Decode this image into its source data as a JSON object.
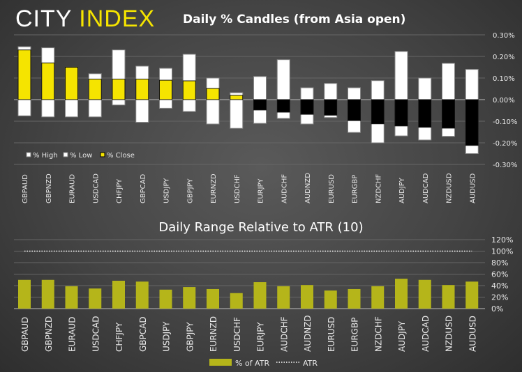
{
  "logo": {
    "part1": "CITY",
    "part2": "INDEX"
  },
  "chart_data": [
    {
      "type": "bar",
      "title": "Daily % Candles (from Asia open)",
      "categories": [
        "GBPAUD",
        "GBPNZD",
        "EURAUD",
        "USDCAD",
        "CHFJPY",
        "GBPCAD",
        "USDJPY",
        "GBPJPY",
        "EURNZD",
        "USDCHF",
        "EURJPY",
        "AUDCHF",
        "AUDNZD",
        "EURUSD",
        "EURGBP",
        "NZDCHF",
        "AUDJPY",
        "AUDCAD",
        "NZDUSD",
        "AUDUSD"
      ],
      "series": [
        {
          "name": "% High",
          "color": "#ffffff",
          "values": [
            0.245,
            0.24,
            0.15,
            0.12,
            0.23,
            0.155,
            0.145,
            0.21,
            0.1,
            0.032,
            0.107,
            0.185,
            0.055,
            0.075,
            0.055,
            0.088,
            0.223,
            0.1,
            0.168,
            0.14
          ]
        },
        {
          "name": "% Low",
          "color": "#ffffff",
          "values": [
            -0.075,
            -0.08,
            -0.08,
            -0.08,
            -0.025,
            -0.105,
            -0.04,
            -0.055,
            -0.113,
            -0.133,
            -0.11,
            -0.087,
            -0.113,
            -0.083,
            -0.152,
            -0.2,
            -0.168,
            -0.187,
            -0.17,
            -0.25
          ]
        },
        {
          "name": "% Close",
          "color_up": "#f5e400",
          "color_down": "#000000",
          "values": [
            0.23,
            0.17,
            0.15,
            0.095,
            0.095,
            0.095,
            0.09,
            0.087,
            0.052,
            0.02,
            -0.048,
            -0.058,
            -0.068,
            -0.072,
            -0.097,
            -0.112,
            -0.122,
            -0.128,
            -0.132,
            -0.212
          ]
        }
      ],
      "yticks": [
        "0.30%",
        "0.20%",
        "0.10%",
        "0.00%",
        "-0.10%",
        "-0.20%",
        "-0.30%"
      ],
      "ylim": [
        -0.3,
        0.3
      ],
      "grid": true,
      "legend": "bottom-left"
    },
    {
      "type": "bar",
      "title": "Daily Range Relative to ATR (10)",
      "categories": [
        "GBPAUD",
        "GBPNZD",
        "EURAUD",
        "USDCAD",
        "CHFJPY",
        "GBPCAD",
        "USDJPY",
        "GBPJPY",
        "EURNZD",
        "USDCHF",
        "EURJPY",
        "AUDCHF",
        "AUDNZD",
        "EURUSD",
        "EURGBP",
        "NZDCHF",
        "AUDJPY",
        "AUDCAD",
        "NZDUSD",
        "AUDUSD"
      ],
      "series": [
        {
          "name": "% of ATR",
          "color": "#b5b51a",
          "values": [
            50,
            50,
            39,
            35,
            48.5,
            47,
            33,
            37.5,
            34,
            27,
            46,
            39,
            41,
            31.5,
            34,
            39,
            52,
            50,
            41,
            47
          ]
        },
        {
          "name": "ATR",
          "color": "#ffffff",
          "style": "dotted",
          "values": [
            100,
            100,
            100,
            100,
            100,
            100,
            100,
            100,
            100,
            100,
            100,
            100,
            100,
            100,
            100,
            100,
            100,
            100,
            100,
            100
          ]
        }
      ],
      "yticks": [
        "120%",
        "100%",
        "80%",
        "60%",
        "40%",
        "20%",
        "0%"
      ],
      "ylim": [
        0,
        120
      ],
      "grid": true,
      "legend": "bottom"
    }
  ]
}
